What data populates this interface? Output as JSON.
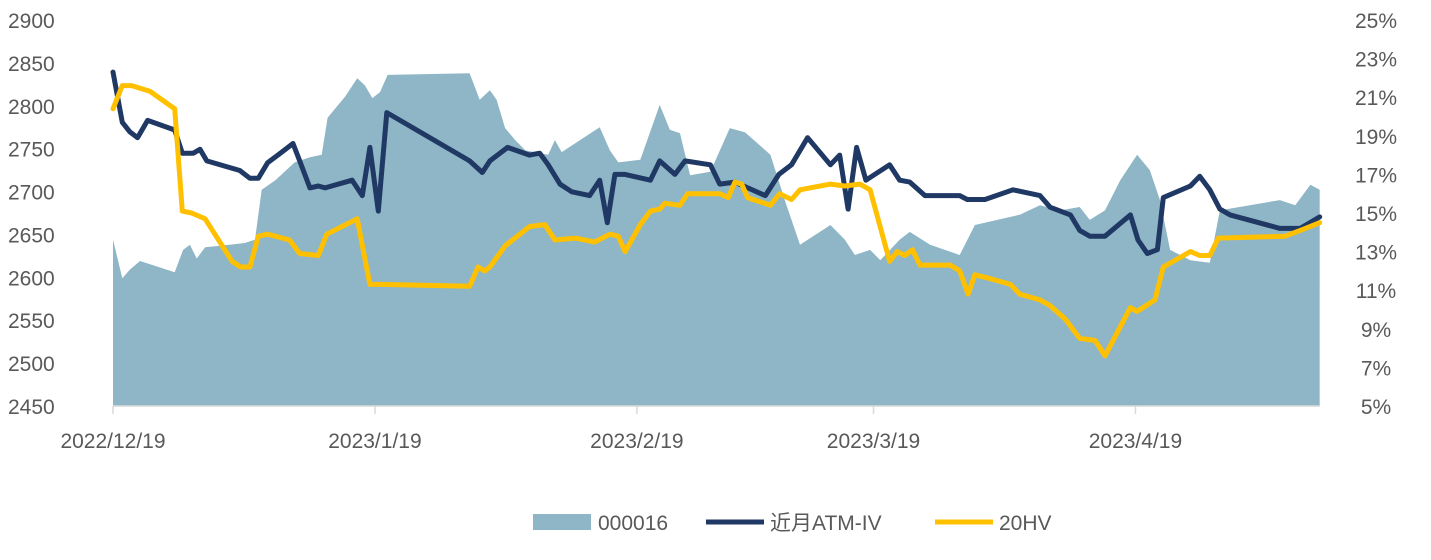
{
  "chart_data": {
    "type": "line",
    "title": "",
    "x_unit": "days since 2022/12/19",
    "x_ticks": [
      {
        "day": 0,
        "label": "2022/12/19"
      },
      {
        "day": 31,
        "label": "2023/1/19"
      },
      {
        "day": 62,
        "label": "2023/2/19"
      },
      {
        "day": 90,
        "label": "2023/3/19"
      },
      {
        "day": 121,
        "label": "2023/4/19"
      }
    ],
    "y_left": {
      "min": 2450,
      "max": 2900,
      "step": 50,
      "ticks": [
        "2450",
        "2500",
        "2550",
        "2600",
        "2650",
        "2700",
        "2750",
        "2800",
        "2850",
        "2900"
      ]
    },
    "y_right": {
      "min": 5,
      "max": 25,
      "step": 2,
      "ticks": [
        "5%",
        "7%",
        "9%",
        "11%",
        "13%",
        "15%",
        "17%",
        "19%",
        "21%",
        "23%",
        "25%"
      ]
    },
    "grid": false,
    "legend_position": "bottom",
    "series": [
      {
        "name": "000016",
        "type": "area",
        "axis": "left",
        "color": "#8fb6c6",
        "points": [
          [
            0,
            2644
          ],
          [
            1.1,
            2599
          ],
          [
            2.0,
            2609
          ],
          [
            3.2,
            2619
          ],
          [
            7.3,
            2606
          ],
          [
            8.3,
            2632
          ],
          [
            9.1,
            2638
          ],
          [
            9.9,
            2622
          ],
          [
            10.9,
            2635
          ],
          [
            13.8,
            2638
          ],
          [
            15.6,
            2640
          ],
          [
            16.8,
            2644
          ],
          [
            17.6,
            2702
          ],
          [
            19.2,
            2713
          ],
          [
            21.5,
            2734
          ],
          [
            23.3,
            2740
          ],
          [
            24.7,
            2743
          ],
          [
            25.4,
            2786
          ],
          [
            27.5,
            2811
          ],
          [
            28.9,
            2832
          ],
          [
            29.8,
            2824
          ],
          [
            30.7,
            2809
          ],
          [
            31.6,
            2816
          ],
          [
            32.5,
            2836
          ],
          [
            42.2,
            2838
          ],
          [
            43.4,
            2807
          ],
          [
            44.6,
            2818
          ],
          [
            45.4,
            2807
          ],
          [
            46.4,
            2774
          ],
          [
            47.6,
            2760
          ],
          [
            48.8,
            2748
          ],
          [
            51.5,
            2743
          ],
          [
            52.3,
            2760
          ],
          [
            53.1,
            2746
          ],
          [
            57.6,
            2775
          ],
          [
            58.8,
            2748
          ],
          [
            59.8,
            2734
          ],
          [
            62.4,
            2737
          ],
          [
            64.7,
            2801
          ],
          [
            65.9,
            2772
          ],
          [
            67.1,
            2768
          ],
          [
            68.3,
            2719
          ],
          [
            70.7,
            2723
          ],
          [
            73.0,
            2774
          ],
          [
            74.8,
            2769
          ],
          [
            77.8,
            2743
          ],
          [
            79.5,
            2690
          ],
          [
            81.3,
            2638
          ],
          [
            84.9,
            2661
          ],
          [
            86.6,
            2644
          ],
          [
            87.8,
            2626
          ],
          [
            89.6,
            2632
          ],
          [
            90.8,
            2620
          ],
          [
            93.1,
            2644
          ],
          [
            94.3,
            2653
          ],
          [
            96.7,
            2638
          ],
          [
            100.2,
            2626
          ],
          [
            102.0,
            2661
          ],
          [
            107.3,
            2673
          ],
          [
            109.7,
            2684
          ],
          [
            112.1,
            2678
          ],
          [
            114.4,
            2682
          ],
          [
            115.6,
            2667
          ],
          [
            117.4,
            2678
          ],
          [
            119.2,
            2713
          ],
          [
            121.2,
            2743
          ],
          [
            122.7,
            2725
          ],
          [
            123.9,
            2690
          ],
          [
            125.1,
            2632
          ],
          [
            127.5,
            2620
          ],
          [
            129.8,
            2617
          ],
          [
            131.0,
            2678
          ],
          [
            138.1,
            2690
          ],
          [
            139.9,
            2684
          ],
          [
            141.7,
            2708
          ],
          [
            142.8,
            2702
          ]
        ]
      },
      {
        "name": "近月ATM-IV",
        "type": "line",
        "axis": "right",
        "color": "#1f3864",
        "points": [
          [
            0,
            22.3
          ],
          [
            1.1,
            19.7
          ],
          [
            2.0,
            19.2
          ],
          [
            2.9,
            18.9
          ],
          [
            4.1,
            19.8
          ],
          [
            7.3,
            19.3
          ],
          [
            8.2,
            18.1
          ],
          [
            9.5,
            18.1
          ],
          [
            10.3,
            18.3
          ],
          [
            11.1,
            17.7
          ],
          [
            15.0,
            17.2
          ],
          [
            16.2,
            16.8
          ],
          [
            17.2,
            16.8
          ],
          [
            18.3,
            17.6
          ],
          [
            19.8,
            18.1
          ],
          [
            21.3,
            18.6
          ],
          [
            22.1,
            17.7
          ],
          [
            23.3,
            16.3
          ],
          [
            24.3,
            16.4
          ],
          [
            25.1,
            16.3
          ],
          [
            28.3,
            16.7
          ],
          [
            29.5,
            15.9
          ],
          [
            30.4,
            18.4
          ],
          [
            31.4,
            15.1
          ],
          [
            32.4,
            20.2
          ],
          [
            42.2,
            17.7
          ],
          [
            43.7,
            17.1
          ],
          [
            44.6,
            17.7
          ],
          [
            46.7,
            18.4
          ],
          [
            49.3,
            18.0
          ],
          [
            50.5,
            18.1
          ],
          [
            51.5,
            17.5
          ],
          [
            52.9,
            16.5
          ],
          [
            54.3,
            16.1
          ],
          [
            56.4,
            15.9
          ],
          [
            57.6,
            16.7
          ],
          [
            58.5,
            14.5
          ],
          [
            59.4,
            17.0
          ],
          [
            60.6,
            17.0
          ],
          [
            63.6,
            16.7
          ],
          [
            64.7,
            17.7
          ],
          [
            66.5,
            17.0
          ],
          [
            67.7,
            17.7
          ],
          [
            70.7,
            17.5
          ],
          [
            71.8,
            16.5
          ],
          [
            73.6,
            16.6
          ],
          [
            77.2,
            15.9
          ],
          [
            78.8,
            17.0
          ],
          [
            80.3,
            17.5
          ],
          [
            82.2,
            18.9
          ],
          [
            84.9,
            17.5
          ],
          [
            86.0,
            18.0
          ],
          [
            87.0,
            15.2
          ],
          [
            88.0,
            18.4
          ],
          [
            89.1,
            16.7
          ],
          [
            91.9,
            17.5
          ],
          [
            93.1,
            16.7
          ],
          [
            94.3,
            16.6
          ],
          [
            96.1,
            15.9
          ],
          [
            100.2,
            15.9
          ],
          [
            101.1,
            15.7
          ],
          [
            103.2,
            15.7
          ],
          [
            106.5,
            16.2
          ],
          [
            109.7,
            15.9
          ],
          [
            110.9,
            15.3
          ],
          [
            113.3,
            14.9
          ],
          [
            114.4,
            14.1
          ],
          [
            115.6,
            13.8
          ],
          [
            117.4,
            13.8
          ],
          [
            120.4,
            14.9
          ],
          [
            121.3,
            13.6
          ],
          [
            122.4,
            12.9
          ],
          [
            123.6,
            13.1
          ],
          [
            124.3,
            15.8
          ],
          [
            127.5,
            16.4
          ],
          [
            128.6,
            16.9
          ],
          [
            129.8,
            16.2
          ],
          [
            131.0,
            15.2
          ],
          [
            132.2,
            14.9
          ],
          [
            138.1,
            14.2
          ],
          [
            140.5,
            14.2
          ],
          [
            142.8,
            14.8
          ]
        ]
      },
      {
        "name": "20HV",
        "type": "line",
        "axis": "right",
        "color": "#ffc000",
        "points": [
          [
            0,
            20.4
          ],
          [
            1.1,
            21.6
          ],
          [
            2.2,
            21.6
          ],
          [
            4.4,
            21.3
          ],
          [
            7.3,
            20.4
          ],
          [
            8.2,
            15.1
          ],
          [
            9.3,
            15.0
          ],
          [
            10.9,
            14.7
          ],
          [
            14.1,
            12.5
          ],
          [
            15.1,
            12.2
          ],
          [
            16.2,
            12.2
          ],
          [
            17.2,
            13.8
          ],
          [
            18.3,
            13.9
          ],
          [
            20.9,
            13.6
          ],
          [
            22.1,
            12.9
          ],
          [
            24.3,
            12.8
          ],
          [
            25.3,
            13.9
          ],
          [
            28.9,
            14.7
          ],
          [
            30.4,
            11.3
          ],
          [
            31.6,
            11.3
          ],
          [
            42.2,
            11.2
          ],
          [
            43.2,
            12.2
          ],
          [
            44.0,
            12.0
          ],
          [
            44.6,
            12.2
          ],
          [
            46.4,
            13.3
          ],
          [
            49.3,
            14.3
          ],
          [
            51.1,
            14.4
          ],
          [
            52.3,
            13.6
          ],
          [
            54.7,
            13.7
          ],
          [
            57.0,
            13.5
          ],
          [
            58.8,
            13.9
          ],
          [
            59.8,
            13.8
          ],
          [
            60.6,
            13.0
          ],
          [
            62.4,
            14.4
          ],
          [
            63.6,
            15.1
          ],
          [
            64.7,
            15.2
          ],
          [
            65.3,
            15.5
          ],
          [
            67.1,
            15.4
          ],
          [
            68.0,
            16.0
          ],
          [
            71.8,
            16.0
          ],
          [
            72.8,
            15.8
          ],
          [
            73.6,
            16.6
          ],
          [
            74.4,
            16.5
          ],
          [
            75.1,
            15.8
          ],
          [
            77.8,
            15.4
          ],
          [
            78.9,
            16.0
          ],
          [
            80.3,
            15.7
          ],
          [
            81.3,
            16.2
          ],
          [
            84.9,
            16.5
          ],
          [
            86.6,
            16.4
          ],
          [
            88.4,
            16.5
          ],
          [
            89.6,
            16.2
          ],
          [
            91.9,
            12.5
          ],
          [
            92.8,
            13.0
          ],
          [
            93.7,
            12.8
          ],
          [
            94.6,
            13.1
          ],
          [
            95.5,
            12.3
          ],
          [
            99.1,
            12.3
          ],
          [
            100.2,
            12.0
          ],
          [
            101.2,
            10.8
          ],
          [
            102.0,
            11.8
          ],
          [
            103.8,
            11.6
          ],
          [
            106.2,
            11.3
          ],
          [
            107.3,
            10.8
          ],
          [
            109.7,
            10.5
          ],
          [
            110.9,
            10.2
          ],
          [
            112.7,
            9.5
          ],
          [
            114.4,
            8.5
          ],
          [
            116.2,
            8.4
          ],
          [
            117.4,
            7.6
          ],
          [
            120.4,
            10.1
          ],
          [
            121.2,
            9.9
          ],
          [
            123.3,
            10.5
          ],
          [
            124.3,
            12.2
          ],
          [
            127.5,
            13.0
          ],
          [
            128.6,
            12.8
          ],
          [
            129.8,
            12.8
          ],
          [
            130.8,
            13.7
          ],
          [
            138.7,
            13.8
          ],
          [
            140.5,
            14.1
          ],
          [
            142.8,
            14.5
          ]
        ]
      }
    ]
  }
}
